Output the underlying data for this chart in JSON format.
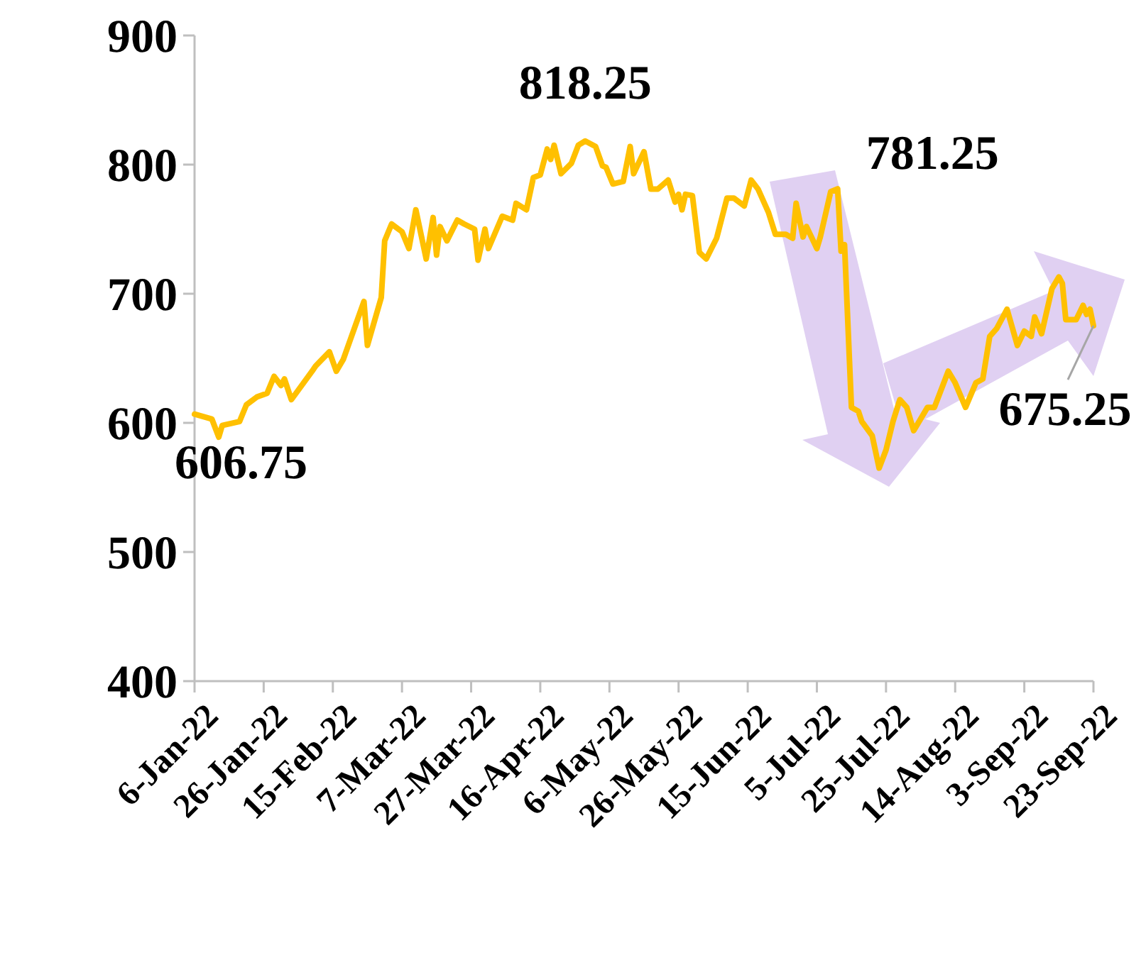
{
  "chart_data": {
    "type": "line",
    "x": [
      "2022-01-06",
      "2022-01-11",
      "2022-01-13",
      "2022-01-14",
      "2022-01-19",
      "2022-01-21",
      "2022-01-24",
      "2022-01-27",
      "2022-01-29",
      "2022-01-31",
      "2022-02-01",
      "2022-02-03",
      "2022-02-09",
      "2022-02-10",
      "2022-02-14",
      "2022-02-16",
      "2022-02-18",
      "2022-02-24",
      "2022-02-25",
      "2022-03-01",
      "2022-03-02",
      "2022-03-04",
      "2022-03-07",
      "2022-03-09",
      "2022-03-11",
      "2022-03-14",
      "2022-03-16",
      "2022-03-17",
      "2022-03-18",
      "2022-03-20",
      "2022-03-23",
      "2022-03-25",
      "2022-03-28",
      "2022-03-29",
      "2022-03-31",
      "2022-04-01",
      "2022-04-05",
      "2022-04-08",
      "2022-04-09",
      "2022-04-12",
      "2022-04-14",
      "2022-04-16",
      "2022-04-18",
      "2022-04-19",
      "2022-04-20",
      "2022-04-22",
      "2022-04-25",
      "2022-04-27",
      "2022-04-29",
      "2022-05-02",
      "2022-05-04",
      "2022-05-05",
      "2022-05-07",
      "2022-05-10",
      "2022-05-12",
      "2022-05-13",
      "2022-05-16",
      "2022-05-18",
      "2022-05-20",
      "2022-05-23",
      "2022-05-25",
      "2022-05-26",
      "2022-05-27",
      "2022-05-28",
      "2022-05-30",
      "2022-06-01",
      "2022-06-03",
      "2022-06-06",
      "2022-06-09",
      "2022-06-11",
      "2022-06-14",
      "2022-06-16",
      "2022-06-18",
      "2022-06-21",
      "2022-06-23",
      "2022-06-26",
      "2022-06-28",
      "2022-06-29",
      "2022-07-01",
      "2022-07-02",
      "2022-07-05",
      "2022-07-06",
      "2022-07-09",
      "2022-07-11",
      "2022-07-12",
      "2022-07-13",
      "2022-07-15",
      "2022-07-17",
      "2022-07-18",
      "2022-07-21",
      "2022-07-23",
      "2022-07-25",
      "2022-07-27",
      "2022-07-29",
      "2022-07-31",
      "2022-08-02",
      "2022-08-06",
      "2022-08-08",
      "2022-08-12",
      "2022-08-14",
      "2022-08-17",
      "2022-08-20",
      "2022-08-22",
      "2022-08-24",
      "2022-08-26",
      "2022-08-29",
      "2022-09-01",
      "2022-09-03",
      "2022-09-05",
      "2022-09-06",
      "2022-09-08",
      "2022-09-11",
      "2022-09-13",
      "2022-09-14",
      "2022-09-15",
      "2022-09-18",
      "2022-09-20",
      "2022-09-21",
      "2022-09-22",
      "2022-09-23"
    ],
    "series": [
      {
        "color": "#ffc000",
        "values": [
          606.75,
          603,
          589,
          598,
          601,
          614,
          620,
          623,
          636,
          629,
          634,
          618,
          640,
          644,
          655,
          640,
          649,
          694,
          660,
          697,
          741,
          754,
          748,
          735,
          765,
          727,
          759,
          730,
          752,
          741,
          757,
          754,
          750,
          726,
          750,
          735,
          760,
          757,
          770,
          765,
          790,
          792,
          812,
          804,
          815,
          793,
          801,
          815,
          818.25,
          814,
          799,
          798,
          785,
          787,
          814,
          793,
          810,
          781,
          781,
          788,
          771,
          777,
          765,
          777,
          776,
          732,
          727,
          743,
          774,
          774,
          768,
          788,
          781,
          763,
          746,
          746,
          743,
          770,
          744,
          752,
          735,
          744,
          779,
          781.25,
          733,
          738,
          612,
          609,
          601,
          590,
          565,
          579,
          601,
          618,
          612,
          594,
          612,
          612,
          640,
          631,
          612,
          631,
          634,
          667,
          673,
          688,
          660,
          671,
          667,
          682,
          669,
          704,
          713,
          708,
          680,
          680,
          691,
          684,
          688,
          675.25
        ]
      }
    ],
    "xlim": [
      "2022-01-06",
      "2022-09-23"
    ],
    "xticks": [
      {
        "value": "2022-01-06",
        "label": "6-Jan-22"
      },
      {
        "value": "2022-01-26",
        "label": "26-Jan-22"
      },
      {
        "value": "2022-02-15",
        "label": "15-Feb-22"
      },
      {
        "value": "2022-03-07",
        "label": "7-Mar-22"
      },
      {
        "value": "2022-03-27",
        "label": "27-Mar-22"
      },
      {
        "value": "2022-04-16",
        "label": "16-Apr-22"
      },
      {
        "value": "2022-05-06",
        "label": "6-May-22"
      },
      {
        "value": "2022-05-26",
        "label": "26-May-22"
      },
      {
        "value": "2022-06-15",
        "label": "15-Jun-22"
      },
      {
        "value": "2022-07-05",
        "label": "5-Jul-22"
      },
      {
        "value": "2022-07-25",
        "label": "25-Jul-22"
      },
      {
        "value": "2022-08-14",
        "label": "14-Aug-22"
      },
      {
        "value": "2022-09-03",
        "label": "3-Sep-22"
      },
      {
        "value": "2022-09-23",
        "label": "23-Sep-22"
      }
    ],
    "ylim": [
      400,
      900
    ],
    "yticks": [
      400,
      500,
      600,
      700,
      800,
      900
    ],
    "grid": false,
    "marker": "none",
    "line_style": "solid",
    "annotations": [
      {
        "text": "606.75",
        "x": "2022-01-06",
        "y": 606.75
      },
      {
        "text": "818.25",
        "x": "2022-04-29",
        "y": 818.25
      },
      {
        "text": "781.25",
        "x": "2022-07-11",
        "y": 781.25
      },
      {
        "text": "675.25",
        "x": "2022-09-23",
        "y": 675.25
      }
    ]
  }
}
